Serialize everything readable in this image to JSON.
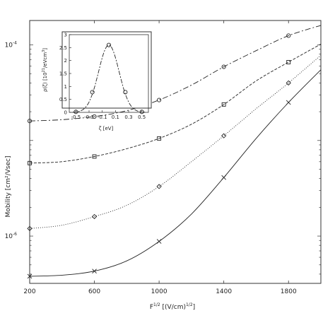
{
  "chart_data": [
    {
      "type": "line",
      "x_scale": "linear",
      "y_scale": "log",
      "xlim": [
        200,
        2000
      ],
      "ylim": [
        3.2e-07,
        0.00018
      ],
      "xlabel": "F^{1/2} [(V/cm)^{1/2}]",
      "xlabel_main": "F",
      "xlabel_sup1": "1/2",
      "xlabel_mid": " [(V/cm)",
      "xlabel_sup2": "1/2",
      "xlabel_end": "]",
      "ylabel": "Mobility [cm²/Vsec]",
      "x_ticks": [
        200,
        600,
        1000,
        1400,
        1800
      ],
      "x_tick_labels": [
        "200",
        "600",
        "1000",
        "1400",
        "1800"
      ],
      "y_ticks": [
        1e-06,
        0.0001
      ],
      "y_tick_labels_base": [
        "10",
        "10"
      ],
      "y_tick_labels_exp": [
        "-6",
        "-4"
      ],
      "grid": false,
      "series": [
        {
          "marker": "circle",
          "dash": "8,3,2,3",
          "x": [
            200,
            400,
            600,
            800,
            1000,
            1200,
            1400,
            1600,
            1800,
            2000
          ],
          "y": [
            1.6e-05,
            1.65e-05,
            1.78e-05,
            2.05e-05,
            2.65e-05,
            3.8e-05,
            5.9e-05,
            8.7e-05,
            0.000125,
            0.00016
          ]
        },
        {
          "marker": "square",
          "dash": "4,2",
          "x": [
            200,
            400,
            600,
            800,
            1000,
            1200,
            1400,
            1600,
            1800,
            2000
          ],
          "y": [
            5.8e-06,
            6e-06,
            6.8e-06,
            8.2e-06,
            1.05e-05,
            1.48e-05,
            2.38e-05,
            4.2e-05,
            6.6e-05,
            0.000102
          ]
        },
        {
          "marker": "diamond",
          "dash": "1,2",
          "x": [
            200,
            400,
            600,
            800,
            1000,
            1200,
            1400,
            1600,
            1800,
            2000
          ],
          "y": [
            1.2e-06,
            1.3e-06,
            1.6e-06,
            2.1e-06,
            3.3e-06,
            6e-06,
            1.12e-05,
            2.15e-05,
            4e-05,
            7.8e-05
          ]
        },
        {
          "marker": "cross",
          "dash": "",
          "x": [
            200,
            400,
            600,
            800,
            1000,
            1200,
            1400,
            1600,
            1800,
            2000
          ],
          "y": [
            3.8e-07,
            3.9e-07,
            4.3e-07,
            5.5e-07,
            8.8e-07,
            1.7e-06,
            4.1e-06,
            1.05e-05,
            2.5e-05,
            5.5e-05
          ]
        }
      ]
    },
    {
      "type": "line",
      "xlim": [
        -0.6,
        0.6
      ],
      "ylim": [
        0,
        3
      ],
      "xlabel": "ζ [eV]",
      "ylabel_main": "ρ(ζ) [10",
      "ylabel_sup": "21",
      "ylabel_mid": "/eVcm",
      "ylabel_sup2": "3",
      "ylabel_end": "]",
      "x_ticks": [
        -0.5,
        -0.3,
        -0.1,
        0.1,
        0.3,
        0.5
      ],
      "x_tick_labels": [
        "-0.5",
        "-0.3",
        "-0.1",
        "0.1",
        "0.3",
        "0.5"
      ],
      "y_ticks": [
        0,
        0.5,
        1,
        1.5,
        2,
        2.5,
        3
      ],
      "y_tick_labels": [
        "0",
        "0.5",
        "1",
        "1.5",
        "2",
        "2.5",
        "3"
      ],
      "series": [
        {
          "marker": "circle",
          "dash": "6,2,2,2",
          "points_x": [
            -0.5,
            -0.25,
            0,
            0.25,
            0.5
          ],
          "points_y": [
            0.02,
            0.78,
            2.6,
            0.78,
            0.02
          ],
          "peak": 2.6,
          "center": 0,
          "sigma": 0.155,
          "x_range": [
            -0.55,
            0.55
          ]
        }
      ]
    }
  ]
}
